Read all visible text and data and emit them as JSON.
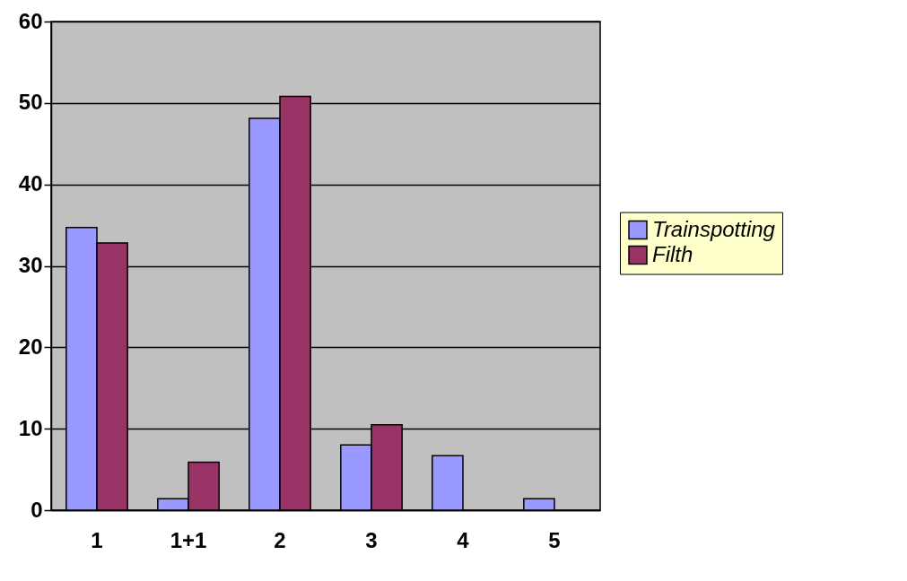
{
  "chart_data": {
    "type": "bar",
    "categories": [
      "1",
      "1+1",
      "2",
      "3",
      "4",
      "5"
    ],
    "series": [
      {
        "name": "Trainspotting",
        "color": "#9999ff",
        "values": [
          34.7,
          1.4,
          48.1,
          8.0,
          6.7,
          1.4
        ]
      },
      {
        "name": "Filth",
        "color": "#993366",
        "values": [
          32.8,
          5.9,
          50.8,
          10.5,
          null,
          null
        ]
      }
    ],
    "ylim": [
      0,
      60
    ],
    "yticks": [
      0,
      10,
      20,
      30,
      40,
      50,
      60
    ],
    "grid": "y",
    "legend": "right"
  }
}
